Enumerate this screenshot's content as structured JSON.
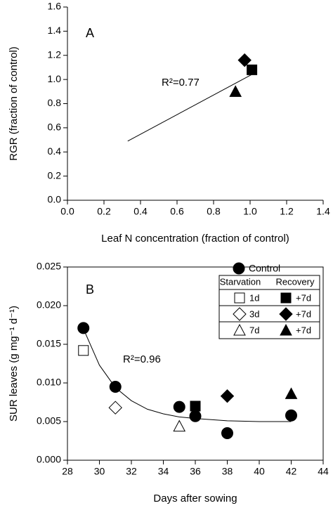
{
  "chart_data": [
    {
      "type": "scatter",
      "panel_label": "A",
      "annotation": "R²=0.77",
      "xlabel": "Leaf N concentration (fraction of control)",
      "ylabel": "RGR (fraction of control)",
      "xlim": [
        0,
        1.4
      ],
      "xticks": [
        {
          "value": 0,
          "label": "0.0"
        },
        0.2,
        0.4,
        0.6,
        0.8,
        {
          "value": 1,
          "label": "1.0"
        },
        1.2,
        1.4
      ],
      "ylim": [
        0,
        1.6
      ],
      "yticks": [
        {
          "value": 0,
          "label": "0.0"
        },
        0.2,
        0.4,
        0.6,
        0.8,
        {
          "value": 1,
          "label": "1.0"
        },
        1.2,
        1.4,
        1.6
      ],
      "axes_box": false,
      "series": [
        {
          "marker": "diamond",
          "color": "#000000",
          "x": [
            0.97
          ],
          "values": [
            1.16
          ]
        },
        {
          "marker": "square",
          "color": "#000000",
          "x": [
            1.01
          ],
          "values": [
            1.08
          ]
        },
        {
          "marker": "triangle",
          "color": "#000000",
          "x": [
            0.92
          ],
          "values": [
            0.9
          ]
        }
      ],
      "fit_line": {
        "x": [
          0.33,
          1.02
        ],
        "values": [
          0.49,
          1.05
        ]
      }
    },
    {
      "type": "scatter",
      "panel_label": "B",
      "annotation": "R²=0.96",
      "xlabel": "Days after sowing",
      "ylabel": "SUR leaves (g mg⁻¹ d⁻¹)",
      "xlim": [
        28,
        44
      ],
      "xticks": [
        28,
        30,
        32,
        34,
        36,
        38,
        40,
        42,
        44
      ],
      "ylim": [
        0,
        0.025
      ],
      "yticks": [
        {
          "value": 0,
          "label": "0.000"
        },
        0.005,
        {
          "value": 0.01,
          "label": "0.010"
        },
        0.015,
        {
          "value": 0.02,
          "label": "0.020"
        },
        0.025
      ],
      "axes_box": true,
      "legend": {
        "position": "upper right",
        "headers": [
          "Starvation",
          "Recovery"
        ]
      },
      "series": [
        {
          "name": "Control",
          "marker": "circle",
          "color": "#000000",
          "x": [
            29,
            31,
            35,
            36,
            38,
            42
          ],
          "values": [
            0.0171,
            0.0095,
            0.0069,
            0.0057,
            0.0035,
            0.0058
          ]
        },
        {
          "name": "1d",
          "marker": "square",
          "color": "#ffffff",
          "x": [
            29
          ],
          "values": [
            0.0142
          ]
        },
        {
          "name": "3d",
          "marker": "diamond",
          "color": "#ffffff",
          "x": [
            31
          ],
          "values": [
            0.0068
          ]
        },
        {
          "name": "7d",
          "marker": "triangle",
          "color": "#ffffff",
          "x": [
            35
          ],
          "values": [
            0.0044
          ]
        },
        {
          "name": "+7d",
          "marker": "square",
          "color": "#000000",
          "x": [
            36
          ],
          "values": [
            0.007
          ]
        },
        {
          "name": "+7d",
          "marker": "diamond",
          "color": "#000000",
          "x": [
            38
          ],
          "values": [
            0.0083
          ]
        },
        {
          "name": "+7d",
          "marker": "triangle",
          "color": "#000000",
          "x": [
            42
          ],
          "values": [
            0.0086
          ]
        }
      ],
      "fit_line": {
        "x": [
          29,
          30,
          31,
          32,
          33,
          34,
          35,
          36,
          38,
          40,
          42
        ],
        "values": [
          0.017,
          0.0123,
          0.0094,
          0.0077,
          0.0066,
          0.006,
          0.0056,
          0.0054,
          0.0051,
          0.005,
          0.005
        ]
      }
    }
  ]
}
